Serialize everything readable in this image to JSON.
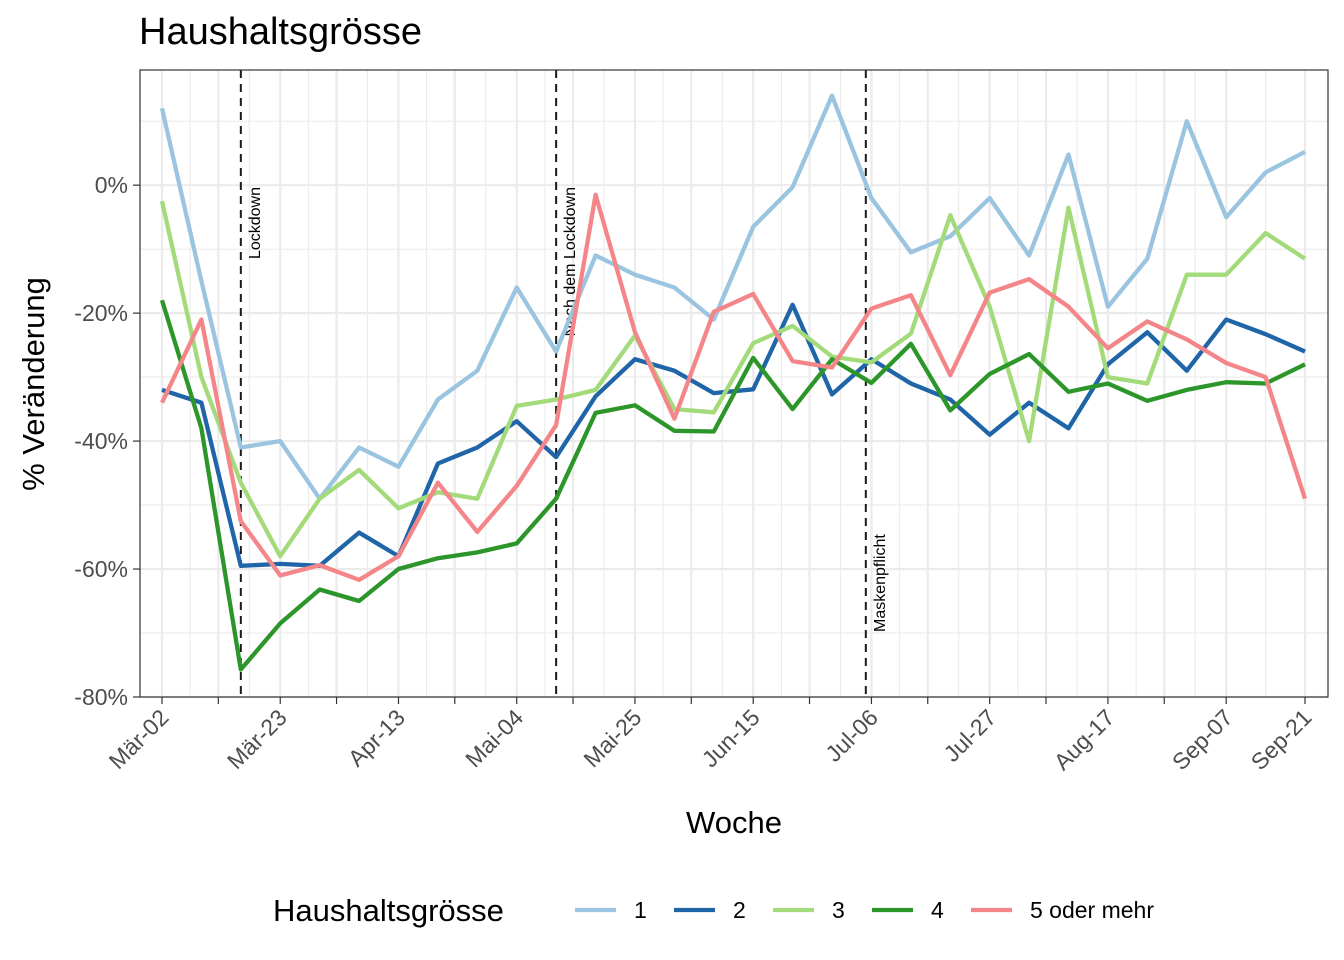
{
  "chart_data": {
    "type": "line",
    "title": "Haushaltsgrösse",
    "xlabel": "Woche",
    "ylabel": "% Veränderung",
    "ylim": [
      -80,
      18
    ],
    "yticks": [
      {
        "value": 0,
        "label": "0%"
      },
      {
        "value": -20,
        "label": "-20%"
      },
      {
        "value": -40,
        "label": "-40%"
      },
      {
        "value": -60,
        "label": "-60%"
      },
      {
        "value": -80,
        "label": "-80%"
      }
    ],
    "x_dates": [
      "2020-03-02",
      "2020-03-09",
      "2020-03-16",
      "2020-03-23",
      "2020-03-30",
      "2020-04-06",
      "2020-04-13",
      "2020-04-20",
      "2020-04-27",
      "2020-05-04",
      "2020-05-11",
      "2020-05-18",
      "2020-05-25",
      "2020-06-01",
      "2020-06-08",
      "2020-06-15",
      "2020-06-22",
      "2020-06-29",
      "2020-07-06",
      "2020-07-13",
      "2020-07-20",
      "2020-07-27",
      "2020-08-03",
      "2020-08-10",
      "2020-08-17",
      "2020-08-24",
      "2020-08-31",
      "2020-09-07",
      "2020-09-14",
      "2020-09-21"
    ],
    "xtick_labels": [
      "Mär-02",
      "",
      "Mär-23",
      "",
      "Apr-13",
      "",
      "Mai-04",
      "",
      "Mai-25",
      "",
      "Jun-15",
      "",
      "Jul-06",
      "",
      "Jul-27",
      "",
      "Aug-17",
      "",
      "Sep-07",
      "Sep-21"
    ],
    "xtick_dates": [
      "2020-03-02",
      "2020-03-12",
      "2020-03-23",
      "2020-04-02",
      "2020-04-13",
      "2020-04-23",
      "2020-05-04",
      "2020-05-14",
      "2020-05-25",
      "2020-06-04",
      "2020-06-15",
      "2020-06-25",
      "2020-07-06",
      "2020-07-16",
      "2020-07-27",
      "2020-08-06",
      "2020-08-17",
      "2020-08-27",
      "2020-09-07",
      "2020-09-21"
    ],
    "events": [
      {
        "date": "2020-03-16",
        "label": "Lockdown",
        "label_at": "top"
      },
      {
        "date": "2020-05-11",
        "label": "Nach dem Lockdown",
        "label_at": "top"
      },
      {
        "date": "2020-07-05",
        "label": "Maskenpflicht",
        "label_at": "bottom"
      }
    ],
    "legend_title": "Haushaltsgrösse",
    "legend_position": "bottom",
    "grid": true,
    "series": [
      {
        "name": "1",
        "color": "#9ac4df",
        "values": [
          12,
          -15,
          -41,
          -40,
          -49,
          -41,
          -44,
          -33.5,
          -29,
          -16,
          -26,
          -11,
          -14,
          -16,
          -21,
          -6.5,
          -0.3,
          14,
          -2,
          -10.5,
          -8,
          -2,
          -11,
          4.8,
          -19,
          -11.5,
          10,
          -5,
          2,
          5.2
        ]
      },
      {
        "name": "2",
        "color": "#1f65a8",
        "values": [
          -32,
          -34,
          -59.5,
          -59.2,
          -59.5,
          -54.3,
          -58,
          -43.5,
          -41,
          -36.9,
          -42.5,
          -33,
          -27.2,
          -29,
          -32.5,
          -31.9,
          -18.7,
          -32.7,
          -27.2,
          -31,
          -33.5,
          -39,
          -34,
          -38,
          -28,
          -23,
          -29,
          -21,
          -23.3,
          -26
        ]
      },
      {
        "name": "3",
        "color": "#a3db7a",
        "values": [
          -2.5,
          -30,
          -46.5,
          -58,
          -49,
          -44.5,
          -50.5,
          -48,
          -49,
          -34.5,
          -33.5,
          -32,
          -23.5,
          -35,
          -35.5,
          -24.7,
          -22,
          -26.8,
          -27.7,
          -23.2,
          -4.7,
          -19,
          -40,
          -3.5,
          -30,
          -31,
          -14,
          -14,
          -7.5,
          -11.5
        ]
      },
      {
        "name": "4",
        "color": "#2d962a",
        "values": [
          -18,
          -38,
          -75.7,
          -68.5,
          -63.2,
          -65,
          -60,
          -58.3,
          -57.4,
          -56,
          -49,
          -35.6,
          -34.4,
          -38.4,
          -38.5,
          -27,
          -35,
          -27.2,
          -30.9,
          -24.8,
          -35.2,
          -29.5,
          -26.4,
          -32.3,
          -31,
          -33.7,
          -32,
          -30.8,
          -31,
          -28
        ]
      },
      {
        "name": "5 oder mehr",
        "color": "#f48589",
        "values": [
          -34,
          -21,
          -52.5,
          -61,
          -59.4,
          -61.7,
          -58,
          -46.5,
          -54.2,
          -47,
          -37.5,
          -1.5,
          -23,
          -36.5,
          -19.8,
          -17,
          -27.5,
          -28.5,
          -19.3,
          -17.2,
          -29.7,
          -16.8,
          -14.7,
          -19,
          -25.5,
          -21.3,
          -24.1,
          -27.8,
          -30,
          -49
        ]
      }
    ]
  }
}
